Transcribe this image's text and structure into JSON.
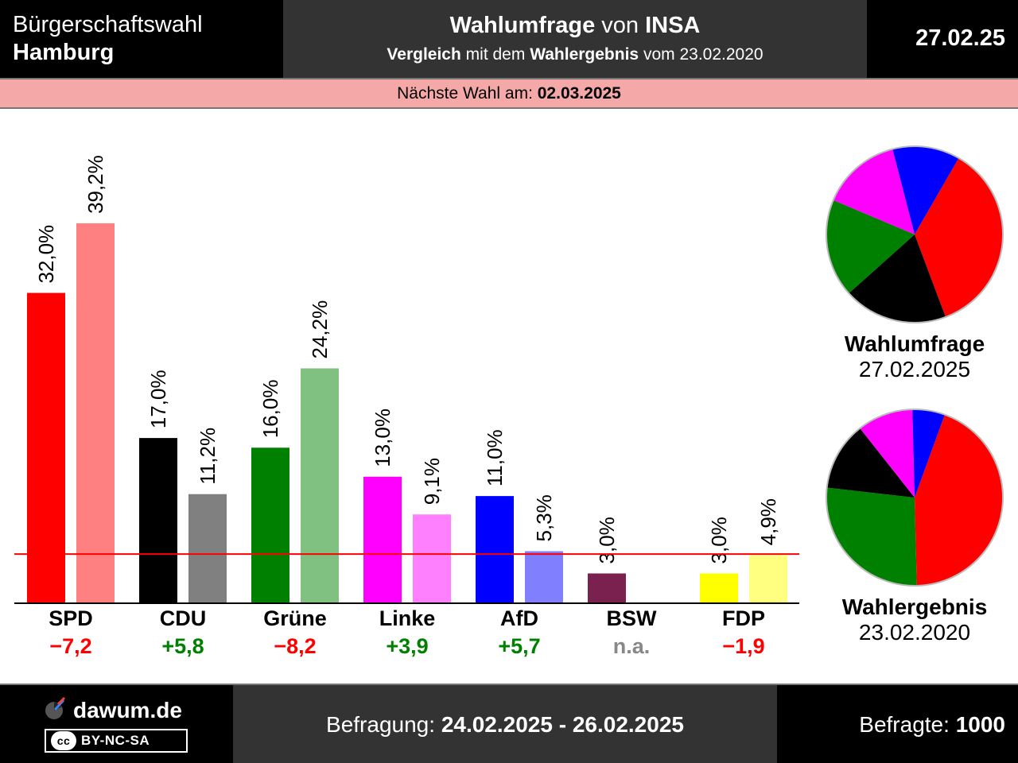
{
  "header": {
    "region_line1": "Bürgerschaftswahl",
    "region_line2": "Hamburg",
    "title_prefix": "Wahlumfrage",
    "title_mid": "von",
    "title_institute": "INSA",
    "subtitle_a": "Vergleich",
    "subtitle_b": "mit dem",
    "subtitle_c": "Wahlergebnis",
    "subtitle_d": "vom 23.02.2020",
    "date": "27.02.25"
  },
  "next_election": {
    "label": "Nächste Wahl am:",
    "date": "02.03.2025"
  },
  "chart_data": {
    "type": "bar",
    "categories": [
      "SPD",
      "CDU",
      "Grüne",
      "Linke",
      "AfD",
      "BSW",
      "FDP"
    ],
    "series": [
      {
        "name": "Wahlumfrage",
        "values": [
          32.0,
          17.0,
          16.0,
          13.0,
          11.0,
          3.0,
          3.0
        ],
        "labels": [
          "32,0%",
          "17,0%",
          "16,0%",
          "13,0%",
          "11,0%",
          "3,0%",
          "3,0%"
        ]
      },
      {
        "name": "Wahlergebnis",
        "values": [
          39.2,
          11.2,
          24.2,
          9.1,
          5.3,
          null,
          4.9
        ],
        "labels": [
          "39,2%",
          "11,2%",
          "24,2%",
          "9,1%",
          "5,3%",
          "",
          "4,9%"
        ]
      }
    ],
    "differences": [
      "−7,2",
      "+5,8",
      "−8,2",
      "+3,9",
      "+5,7",
      "n.a.",
      "−1,9"
    ],
    "difference_colors": [
      "#ff0000",
      "#008000",
      "#ff0000",
      "#008000",
      "#008000",
      "#888888",
      "#ff0000"
    ],
    "colors_poll": [
      "#ff0000",
      "#000000",
      "#008000",
      "#ff00ff",
      "#0000ff",
      "#7b2150",
      "#ffff00"
    ],
    "colors_result": [
      "#ff8080",
      "#808080",
      "#80c080",
      "#ff80ff",
      "#8080ff",
      "#bd90a8",
      "#ffff80"
    ],
    "threshold": 5,
    "ylim": [
      0,
      40
    ],
    "grid": false,
    "legend": "none"
  },
  "pies": [
    {
      "caption_title": "Wahlumfrage",
      "caption_date": "27.02.2025",
      "slices": [
        {
          "party": "SPD",
          "value": 32.0,
          "color": "#ff0000"
        },
        {
          "party": "CDU",
          "value": 17.0,
          "color": "#000000"
        },
        {
          "party": "Grüne",
          "value": 16.0,
          "color": "#008000"
        },
        {
          "party": "Linke",
          "value": 13.0,
          "color": "#ff00ff"
        },
        {
          "party": "AfD",
          "value": 11.0,
          "color": "#0000ff"
        }
      ]
    },
    {
      "caption_title": "Wahlergebnis",
      "caption_date": "23.02.2020",
      "slices": [
        {
          "party": "SPD",
          "value": 39.2,
          "color": "#ff0000"
        },
        {
          "party": "Grüne",
          "value": 24.2,
          "color": "#008000"
        },
        {
          "party": "CDU",
          "value": 11.2,
          "color": "#000000"
        },
        {
          "party": "Linke",
          "value": 9.1,
          "color": "#ff00ff"
        },
        {
          "party": "AfD",
          "value": 5.3,
          "color": "#0000ff"
        }
      ]
    }
  ],
  "footer": {
    "brand": "dawum.de",
    "license": "BY-NC-SA",
    "license_icon": "cc",
    "survey_label": "Befragung:",
    "survey_period": "24.02.2025 - 26.02.2025",
    "respondents_label": "Befragte:",
    "respondents": "1000"
  }
}
